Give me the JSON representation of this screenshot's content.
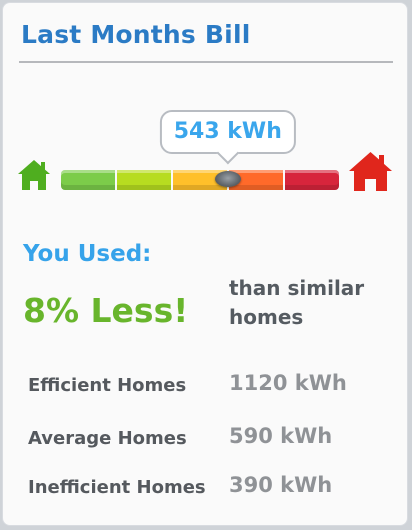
{
  "title": "Last Months Bill",
  "meter": {
    "usage_label": "543 kWh",
    "position_fraction": 0.6,
    "segment_colors": [
      "#7ccc4a",
      "#b7dc20",
      "#ffc02a",
      "#ff6a2a",
      "#d7253c"
    ],
    "efficient_color": "#4fae1f",
    "inefficient_color": "#e0261c"
  },
  "comparison": {
    "you_used": "You Used:",
    "amount": "8% Less!",
    "than_similar": "than similar homes"
  },
  "homes": [
    {
      "label": "Efficient Homes",
      "value": "1120 kWh"
    },
    {
      "label": "Average Homes",
      "value": "590 kWh"
    },
    {
      "label": "Inefficient Homes",
      "value": "390 kWh"
    }
  ]
}
